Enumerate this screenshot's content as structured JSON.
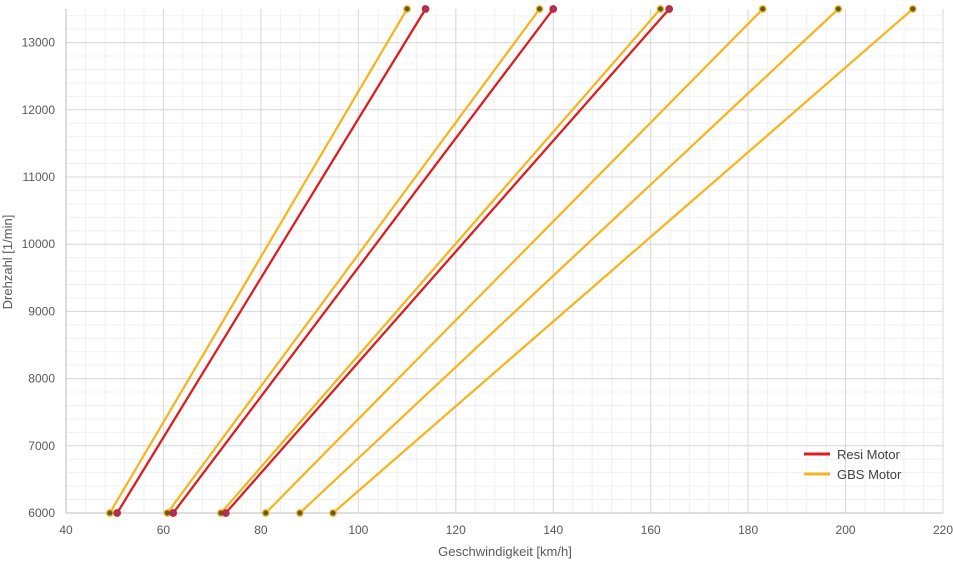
{
  "chart_data": {
    "type": "line",
    "xlabel": "Geschwindigkeit [km/h]",
    "ylabel": "Drehzahl [1/min]",
    "xlim": [
      40,
      220
    ],
    "ylim": [
      6000,
      13500
    ],
    "x_ticks": [
      "40",
      "60",
      "80",
      "100",
      "120",
      "140",
      "160",
      "180",
      "200",
      "220"
    ],
    "y_ticks": [
      "6000",
      "7000",
      "8000",
      "9000",
      "10000",
      "11000",
      "12000",
      "13000"
    ],
    "grid": true,
    "legend_position": "bottom-right",
    "series": [
      {
        "name": "Resi Motor",
        "color": "#e0191c",
        "lines": [
          {
            "x": [
              50.5,
              113.8
            ],
            "y": [
              6000,
              13500
            ]
          },
          {
            "x": [
              62,
              140
            ],
            "y": [
              6000,
              13500
            ]
          },
          {
            "x": [
              72.8,
              163.8
            ],
            "y": [
              6000,
              13500
            ]
          }
        ]
      },
      {
        "name": "GBS Motor",
        "color": "#f5b51d",
        "lines": [
          {
            "x": [
              49,
              110
            ],
            "y": [
              6000,
              13500
            ]
          },
          {
            "x": [
              60.8,
              137.2
            ],
            "y": [
              6000,
              13500
            ]
          },
          {
            "x": [
              71.8,
              162
            ],
            "y": [
              6000,
              13500
            ]
          },
          {
            "x": [
              81,
              183
            ],
            "y": [
              6000,
              13500
            ]
          },
          {
            "x": [
              88,
              198.5
            ],
            "y": [
              6000,
              13500
            ]
          },
          {
            "x": [
              94.8,
              213.8
            ],
            "y": [
              6000,
              13500
            ]
          }
        ]
      }
    ]
  },
  "marker_colors": {
    "resi_fill": "#8e3b78",
    "gbs_fill": "#5b5b2a"
  }
}
